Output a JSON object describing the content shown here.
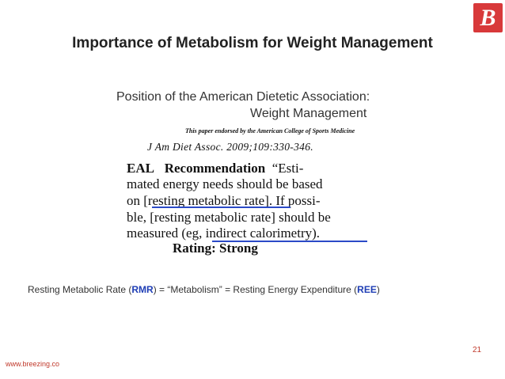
{
  "title": "Importance of Metabolism for Weight Management",
  "logo": {
    "letter": "B",
    "color": "#d8393a"
  },
  "excerpt": {
    "heading_line1": "Position of the American Dietetic Association:",
    "heading_line2": "Weight Management",
    "endorsement": "This paper endorsed by the American College of Sports Medicine",
    "citation": "J Am Diet Assoc. 2009;109:330-346.",
    "label_eal": "EAL",
    "label_recommendation": "Recommendation",
    "line1_rest": "“Esti-",
    "line2": "mated energy needs should be based",
    "line3_pre": "on [",
    "line3_highlight": "resting metabolic rate",
    "line3_post": "]. If possi-",
    "line4": "ble, [resting metabolic rate] should be",
    "line5_pre": "measured (eg",
    "line5_highlight": ", indirect calorimetry",
    "line5_post": ").",
    "rating": "Rating: Strong"
  },
  "caption": {
    "part1": "Resting Metabolic Rate (",
    "abbr1": "RMR",
    "part2": ") = “Metabolism” = Resting Energy Expenditure (",
    "abbr2": "REE",
    "part3": ")"
  },
  "page_number": "21",
  "footer_url": "www.breezing.co",
  "colors": {
    "accent_red": "#c0392b",
    "highlight_blue": "#1f3eb5",
    "underline_blue": "#2b4ac7"
  }
}
